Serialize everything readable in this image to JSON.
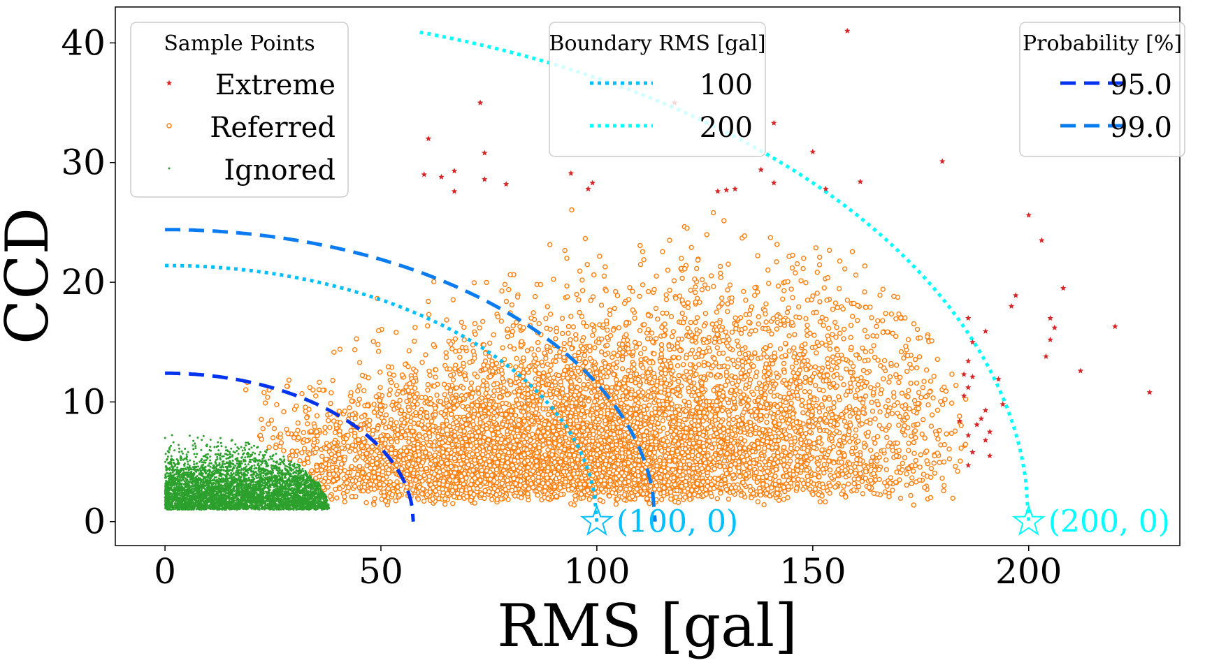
{
  "chart_data": {
    "type": "scatter",
    "xlabel": "RMS [gal]",
    "ylabel": "CCD",
    "xlim": [
      -11.5,
      235
    ],
    "ylim": [
      -2,
      43
    ],
    "xticks": [
      0,
      50,
      100,
      150,
      200
    ],
    "yticks": [
      0,
      10,
      20,
      30,
      40
    ],
    "grid": false,
    "colors": {
      "extreme": "#d62728",
      "referred": "#ff7f0e",
      "ignored": "#2ca02c",
      "boundary_100": "#00bfff",
      "boundary_200": "#00ffff",
      "prob_95": "#0033ee",
      "prob_99": "#0a7cf0"
    },
    "legends": [
      {
        "title": "Sample Points",
        "placement": "top-left",
        "entries": [
          {
            "label": "Extreme",
            "key": "extreme"
          },
          {
            "label": "Referred",
            "key": "referred"
          },
          {
            "label": "Ignored",
            "key": "ignored"
          }
        ]
      },
      {
        "title": "Boundary RMS [gal]",
        "placement": "top-center",
        "entries": [
          {
            "label": "100",
            "key": "boundary_100"
          },
          {
            "label": "200",
            "key": "boundary_200"
          }
        ]
      },
      {
        "title": "Probability [%]",
        "placement": "top-right",
        "entries": [
          {
            "label": "95.0",
            "key": "prob_95"
          },
          {
            "label": "99.0",
            "key": "prob_99"
          }
        ]
      }
    ],
    "curves": [
      {
        "name": "100",
        "style": "dotted",
        "key": "boundary_100",
        "rx": 100,
        "ry": 21.4,
        "x0": 0,
        "y0": 0,
        "x_start": 0
      },
      {
        "name": "200",
        "style": "dotted",
        "key": "boundary_200",
        "rx": 200,
        "ry": 42.8,
        "x0": 0,
        "y0": 0,
        "x_start": 59
      },
      {
        "name": "95.0",
        "style": "dashed",
        "key": "prob_95",
        "rx": 57.5,
        "ry": 12.4,
        "x0": 0,
        "y0": 0,
        "x_start": 0
      },
      {
        "name": "99.0",
        "style": "dashed",
        "key": "prob_99",
        "rx": 113.5,
        "ry": 24.4,
        "x0": 0,
        "y0": 0,
        "x_start": 0
      }
    ],
    "annotations": [
      {
        "x": 100,
        "y": 0,
        "label": "(100, 0)",
        "key": "boundary_100"
      },
      {
        "x": 200,
        "y": 0,
        "label": "(200, 0)",
        "key": "boundary_200"
      }
    ],
    "extreme_points": [
      [
        158,
        41
      ],
      [
        73,
        35
      ],
      [
        118,
        35
      ],
      [
        61,
        32
      ],
      [
        74,
        30.8
      ],
      [
        141,
        33.3
      ],
      [
        150,
        30.9
      ],
      [
        180,
        30.1
      ],
      [
        60,
        29
      ],
      [
        64,
        28.8
      ],
      [
        67,
        29.3
      ],
      [
        67,
        27.6
      ],
      [
        74,
        28.6
      ],
      [
        79,
        28.2
      ],
      [
        94,
        29.1
      ],
      [
        99,
        28.3
      ],
      [
        98,
        27.8
      ],
      [
        128,
        27.6
      ],
      [
        130,
        27.7
      ],
      [
        132,
        27.8
      ],
      [
        138,
        29.4
      ],
      [
        141,
        28.3
      ],
      [
        153,
        27.8
      ],
      [
        161,
        28.4
      ],
      [
        200,
        25.6
      ],
      [
        203,
        23.5
      ],
      [
        208,
        19.5
      ],
      [
        197,
        18.9
      ],
      [
        196,
        18
      ],
      [
        205,
        17
      ],
      [
        206,
        16.2
      ],
      [
        205,
        15.2
      ],
      [
        204,
        13.8
      ],
      [
        220,
        16.3
      ],
      [
        212,
        12.6
      ],
      [
        228,
        10.8
      ],
      [
        186,
        17
      ],
      [
        190,
        15.9
      ],
      [
        187,
        15
      ],
      [
        186,
        13.4
      ],
      [
        185,
        12.3
      ],
      [
        187,
        12.1
      ],
      [
        186,
        11.2
      ],
      [
        190,
        9.3
      ],
      [
        189,
        8.6
      ],
      [
        188,
        8.1
      ],
      [
        186,
        7.2
      ],
      [
        187,
        5.8
      ],
      [
        190,
        6.8
      ],
      [
        191,
        5.5
      ],
      [
        186,
        4.7
      ],
      [
        184,
        8.4
      ],
      [
        185,
        10.5
      ],
      [
        193,
        11.9
      ],
      [
        194,
        9.8
      ],
      [
        191,
        7.5
      ]
    ],
    "referred_distribution": {
      "count": 7200,
      "x_range": [
        15,
        190
      ],
      "y_range": [
        1.2,
        27.5
      ],
      "dense_center": [
        80,
        6
      ]
    },
    "ignored_distribution": {
      "count": 5000,
      "x_range": [
        0,
        38
      ],
      "y_range": [
        1,
        7.5
      ],
      "boundary": "ellipse rx=38 ry=6.8"
    }
  }
}
